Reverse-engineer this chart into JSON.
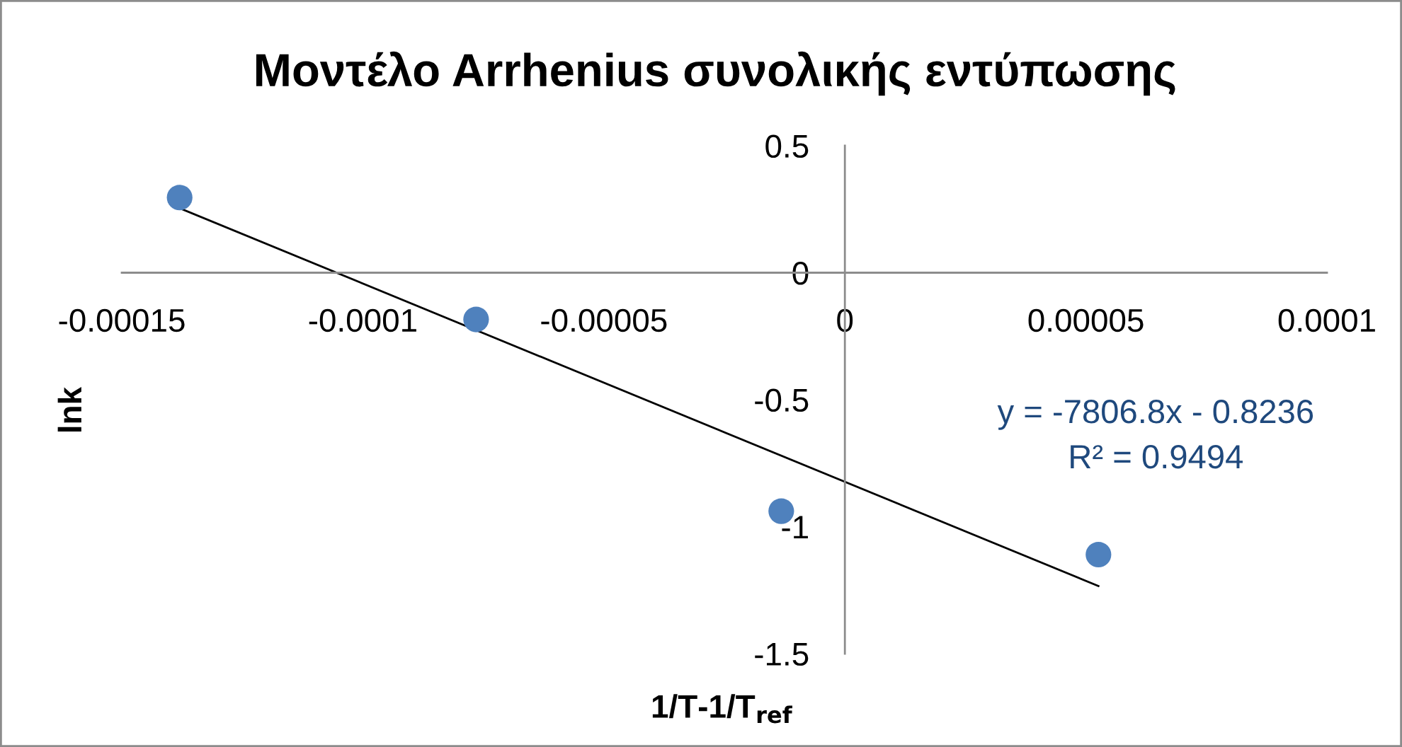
{
  "chart_data": {
    "type": "scatter",
    "title": "Μοντέλο Arrhenius συνολικής εντύπωσης",
    "xlabel": "1/T-1/T$_{ref}$",
    "ylabel": "lnk",
    "xlim": [
      -0.00015,
      0.0001
    ],
    "xticks": [
      -0.00015,
      -0.0001,
      {
        "value": -5e-05,
        "label": "-0.00005"
      },
      0,
      {
        "value": 5e-05,
        "label": "0.00005"
      },
      0.0001
    ],
    "ylim": [
      -1.5,
      0.5
    ],
    "yticks": [
      -1.5,
      -1,
      -0.5,
      0,
      0.5
    ],
    "marker": "circle",
    "series": [
      {
        "color": "#4f81bd",
        "x": [
          -0.000138,
          -7.65e-05,
          -1.32e-05,
          5.26e-05
        ],
        "values": [
          0.296,
          -0.184,
          -0.939,
          -1.11
        ]
      },
      {
        "type": "line",
        "color": "#000000",
        "marker": "none",
        "line_style": "solid",
        "x": [
          -0.000138,
          5.26e-05
        ],
        "values": [
          0.254,
          -1.234
        ]
      }
    ],
    "annotations": [
      "y = -7806.8x - 0.8236",
      "R² = 0.9494"
    ]
  }
}
